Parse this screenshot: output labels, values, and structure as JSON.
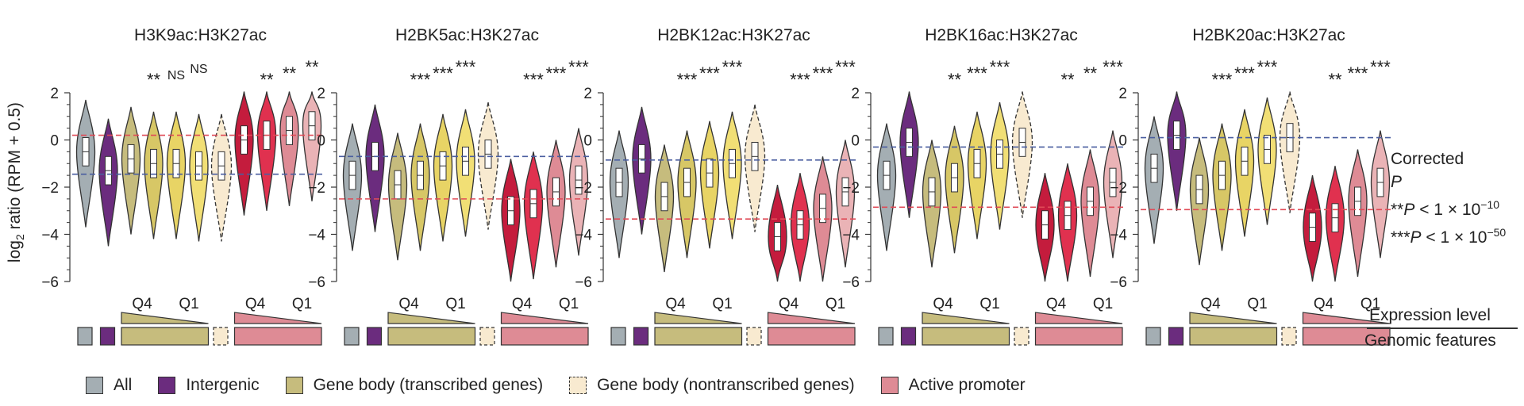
{
  "ylabel": {
    "prefix": "log",
    "sub": "2",
    "suffix": " ratio (RPM + 0.5)"
  },
  "colors": {
    "all": "#a4aeb3",
    "intergenic": "#6b2c7e",
    "gene_body": [
      "#c6bc7d",
      "#d7c766",
      "#e8d465",
      "#f1df75"
    ],
    "nontranscribed": "#f8ead0",
    "promoter": [
      "#c41c3d",
      "#e0314f",
      "#de8b95",
      "#eab3b6"
    ],
    "red_line": "#e04b57",
    "blue_line": "#4a5ea0"
  },
  "chart_data": [
    {
      "type": "violin",
      "title": "H3K9ac:H3K27ac",
      "ylim": [
        -6,
        2
      ],
      "yticks": [
        "2",
        "0",
        "-2",
        "-4",
        "-6"
      ],
      "reference_lines": {
        "red": 0.2,
        "blue": -1.45
      },
      "medians": [
        -0.5,
        -1.3,
        -0.8,
        -1.0,
        -1.0,
        -1.1,
        -1.1,
        0.0,
        0.2,
        0.4,
        0.6
      ],
      "significance": [
        "**",
        "NS",
        "NS",
        "**",
        "**",
        "**"
      ]
    },
    {
      "type": "violin",
      "title": "H2BK5ac:H3K27ac",
      "ylim": [
        -6,
        2
      ],
      "yticks": [
        "2",
        "0",
        "-2",
        "-4",
        "-6"
      ],
      "reference_lines": {
        "red": -2.5,
        "blue": -0.7
      },
      "medians": [
        -1.5,
        -0.7,
        -1.9,
        -1.5,
        -1.1,
        -0.9,
        -0.6,
        -3.0,
        -2.7,
        -2.2,
        -1.7
      ],
      "significance": [
        "***",
        "***",
        "***",
        "***",
        "***",
        "***"
      ]
    },
    {
      "type": "violin",
      "title": "H2BK12ac:H3K27ac",
      "ylim": [
        -6,
        2
      ],
      "yticks": [
        "2",
        "0",
        "-2",
        "-4",
        "-6"
      ],
      "reference_lines": {
        "red": -3.35,
        "blue": -0.85
      },
      "medians": [
        -1.8,
        -0.8,
        -2.4,
        -1.8,
        -1.4,
        -1.0,
        -0.7,
        -4.1,
        -3.6,
        -2.9,
        -2.2
      ],
      "significance": [
        "***",
        "***",
        "***",
        "***",
        "***",
        "***"
      ]
    },
    {
      "type": "violin",
      "title": "H2BK16ac:H3K27ac",
      "ylim": [
        -6,
        2
      ],
      "yticks": [
        "2",
        "0",
        "-2",
        "-4",
        "-6"
      ],
      "reference_lines": {
        "red": -2.85,
        "blue": -0.3
      },
      "medians": [
        -1.5,
        -0.1,
        -2.2,
        -1.6,
        -1.0,
        -0.6,
        -0.1,
        -3.6,
        -3.2,
        -2.6,
        -1.8
      ],
      "significance": [
        "**",
        "***",
        "***",
        "**",
        "**",
        "***"
      ]
    },
    {
      "type": "violin",
      "title": "H2BK20ac:H3K27ac",
      "ylim": [
        -6,
        2
      ],
      "yticks": [
        "2",
        "0",
        "-2",
        "-4",
        "-6"
      ],
      "reference_lines": {
        "red": -2.95,
        "blue": 0.1
      },
      "medians": [
        -1.2,
        0.2,
        -2.1,
        -1.5,
        -0.9,
        -0.4,
        0.1,
        -3.7,
        -3.3,
        -2.6,
        -1.8
      ],
      "significance": [
        "***",
        "***",
        "***",
        "**",
        "***",
        "***"
      ]
    }
  ],
  "expression_labels": {
    "high": "Q4",
    "low": "Q1"
  },
  "sig_legend": {
    "line1": "Corrected",
    "line2": "P",
    "line3_stars": "**",
    "line3_text": " < 1 × 10",
    "line3_exp": "−10",
    "line4_stars": "***",
    "line4_text": " < 1 × 10",
    "line4_exp": "−50"
  },
  "side_labels": {
    "expression": "Expression level",
    "features": "Genomic features"
  },
  "legend": [
    {
      "label": "All",
      "key": "all"
    },
    {
      "label": "Intergenic",
      "key": "intergenic"
    },
    {
      "label": "Gene body (transcribed genes)",
      "key": "gene_body"
    },
    {
      "label": "Gene body (nontranscribed genes)",
      "key": "nontranscribed"
    },
    {
      "label": "Active promoter",
      "key": "promoter"
    }
  ]
}
